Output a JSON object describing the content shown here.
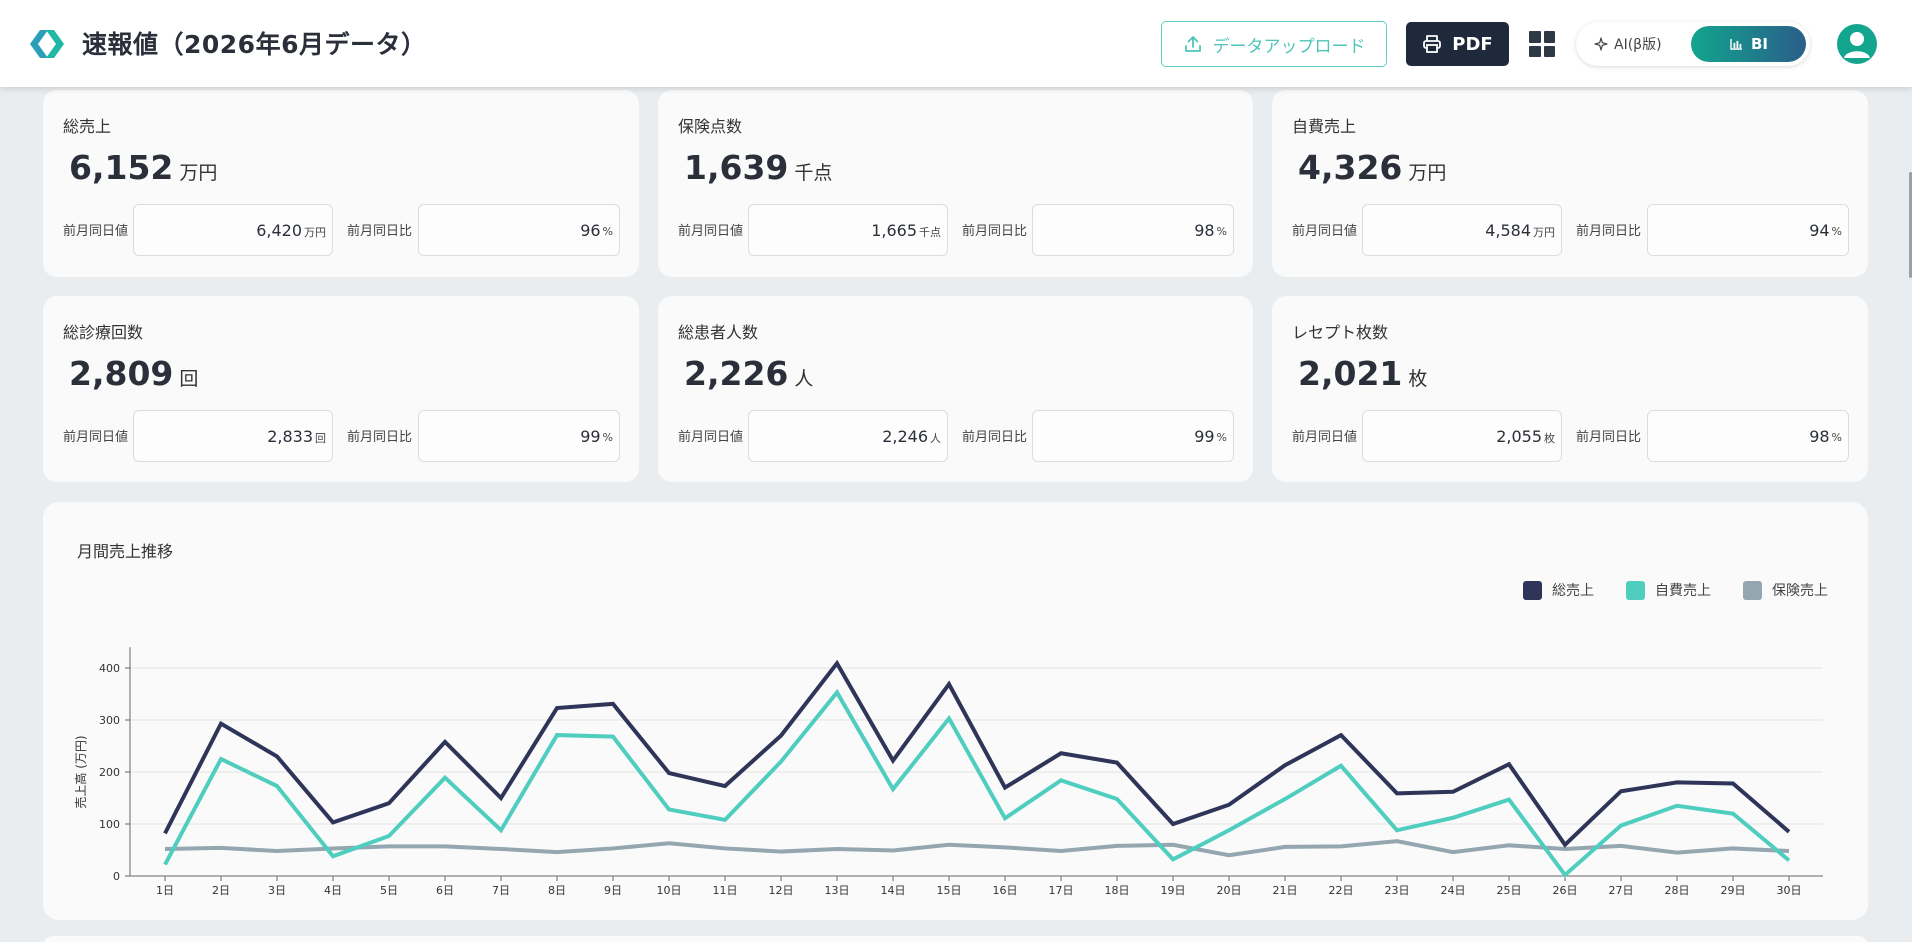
{
  "header": {
    "title": "速報値（2026年6月データ）",
    "upload_label": "データアップロード",
    "pdf_label": "PDF",
    "ai_label": "AI(β版)",
    "bi_label": "BI"
  },
  "kpi_cards": [
    {
      "label": "総売上",
      "value": "6,152",
      "unit": "万円",
      "prev_label": "前月同日値",
      "prev_value": "6,420",
      "prev_unit": "万円",
      "ratio_label": "前月同日比",
      "ratio_value": "96",
      "ratio_unit": "%"
    },
    {
      "label": "保険点数",
      "value": "1,639",
      "unit": "千点",
      "prev_label": "前月同日値",
      "prev_value": "1,665",
      "prev_unit": "千点",
      "ratio_label": "前月同日比",
      "ratio_value": "98",
      "ratio_unit": "%"
    },
    {
      "label": "自費売上",
      "value": "4,326",
      "unit": "万円",
      "prev_label": "前月同日値",
      "prev_value": "4,584",
      "prev_unit": "万円",
      "ratio_label": "前月同日比",
      "ratio_value": "94",
      "ratio_unit": "%"
    },
    {
      "label": "総診療回数",
      "value": "2,809",
      "unit": "回",
      "prev_label": "前月同日値",
      "prev_value": "2,833",
      "prev_unit": "回",
      "ratio_label": "前月同日比",
      "ratio_value": "99",
      "ratio_unit": "%"
    },
    {
      "label": "総患者人数",
      "value": "2,226",
      "unit": "人",
      "prev_label": "前月同日値",
      "prev_value": "2,246",
      "prev_unit": "人",
      "ratio_label": "前月同日比",
      "ratio_value": "99",
      "ratio_unit": "%"
    },
    {
      "label": "レセプト枚数",
      "value": "2,021",
      "unit": "枚",
      "prev_label": "前月同日値",
      "prev_value": "2,055",
      "prev_unit": "枚",
      "ratio_label": "前月同日比",
      "ratio_value": "98",
      "ratio_unit": "%"
    }
  ],
  "colors": {
    "total": "#2e3559",
    "self_pay": "#4fcdbf",
    "insurance": "#94a6b0",
    "accent": "#14a58f"
  },
  "chart_data": {
    "type": "line",
    "title": "月間売上推移",
    "ylabel": "売上高 (万円)",
    "xlabel": "",
    "ylim": [
      0,
      450
    ],
    "yticks": [
      0,
      100,
      200,
      300,
      400
    ],
    "grid": true,
    "legend_position": "top-right",
    "categories": [
      "1日",
      "2日",
      "3日",
      "4日",
      "5日",
      "6日",
      "7日",
      "8日",
      "9日",
      "10日",
      "11日",
      "12日",
      "13日",
      "14日",
      "15日",
      "16日",
      "17日",
      "18日",
      "19日",
      "20日",
      "21日",
      "22日",
      "23日",
      "24日",
      "25日",
      "26日",
      "27日",
      "28日",
      "29日",
      "30日"
    ],
    "series": [
      {
        "name": "総売上",
        "values": [
          82,
          293,
          230,
          103,
          140,
          258,
          150,
          323,
          331,
          198,
          173,
          270,
          409,
          222,
          369,
          170,
          236,
          218,
          100,
          137,
          213,
          271,
          159,
          162,
          215,
          60,
          163,
          180,
          178,
          85
        ]
      },
      {
        "name": "自費売上",
        "values": [
          22,
          225,
          173,
          38,
          77,
          189,
          88,
          271,
          268,
          128,
          108,
          220,
          353,
          167,
          303,
          111,
          184,
          148,
          32,
          88,
          148,
          212,
          88,
          112,
          147,
          2,
          97,
          135,
          120,
          30
        ]
      },
      {
        "name": "保険売上",
        "values": [
          52,
          54,
          48,
          53,
          57,
          57,
          52,
          46,
          53,
          63,
          53,
          47,
          52,
          49,
          60,
          55,
          48,
          58,
          60,
          40,
          56,
          57,
          67,
          46,
          59,
          52,
          58,
          45,
          53,
          48
        ]
      }
    ]
  }
}
